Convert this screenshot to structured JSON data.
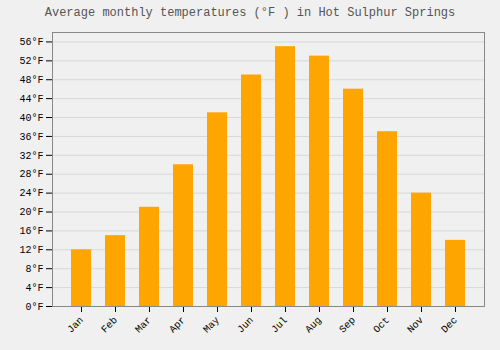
{
  "chart_data": {
    "type": "bar",
    "title": "Average monthly temperatures (°F ) in Hot Sulphur Springs",
    "categories": [
      "Jan",
      "Feb",
      "Mar",
      "Apr",
      "May",
      "Jun",
      "Jul",
      "Aug",
      "Sep",
      "Oct",
      "Nov",
      "Dec"
    ],
    "values": [
      12,
      15,
      21,
      30,
      41,
      49,
      55,
      53,
      46,
      37,
      24,
      14
    ],
    "color": "#FFA500",
    "ylim": [
      0,
      58
    ],
    "yticks": [
      {
        "value": 0,
        "label": "0°F"
      },
      {
        "value": 4,
        "label": "4°F"
      },
      {
        "value": 8,
        "label": "8°F"
      },
      {
        "value": 12,
        "label": "12°F"
      },
      {
        "value": 16,
        "label": "16°F"
      },
      {
        "value": 20,
        "label": "20°F"
      },
      {
        "value": 24,
        "label": "24°F"
      },
      {
        "value": 28,
        "label": "28°F"
      },
      {
        "value": 32,
        "label": "32°F"
      },
      {
        "value": 36,
        "label": "36°F"
      },
      {
        "value": 40,
        "label": "40°F"
      },
      {
        "value": 44,
        "label": "44°F"
      },
      {
        "value": 48,
        "label": "48°F"
      },
      {
        "value": 52,
        "label": "52°F"
      },
      {
        "value": 56,
        "label": "56°F"
      }
    ],
    "grid": true
  }
}
